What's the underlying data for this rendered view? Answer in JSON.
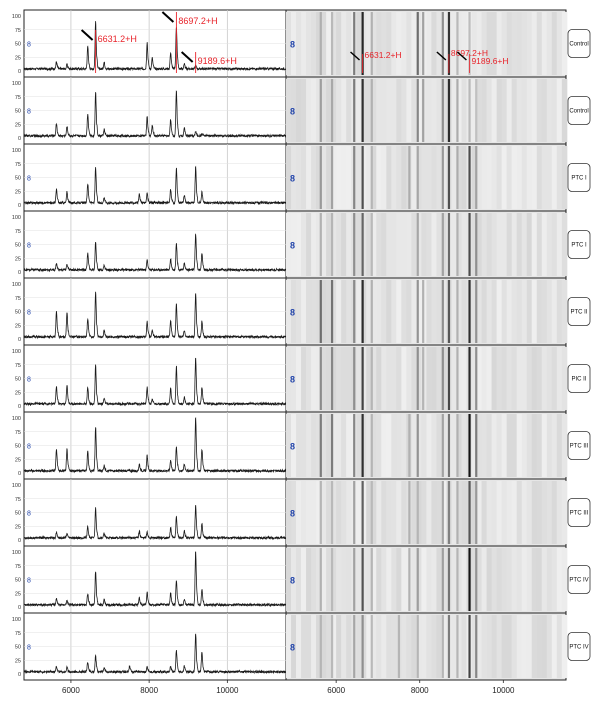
{
  "chart_data": {
    "type": "line",
    "title": "",
    "xlabel": "",
    "ylabel": "",
    "xlim": [
      4800,
      11500
    ],
    "ylim": [
      0,
      100
    ],
    "x_ticks": [
      "6000",
      "8000",
      "10000"
    ],
    "y_ticks": [
      "100",
      "75",
      "50",
      "25",
      "0"
    ],
    "legend_marker": "8",
    "annotations": [
      "6631.2+H",
      "8697.2+H",
      "9189.6+H"
    ],
    "annotation_x": [
      6631.2,
      8697.2,
      9189.6
    ],
    "colors": {
      "spectrum": "#1a1a1a",
      "grid": "#c8c8c8",
      "annotation": "#e8232a",
      "marker": "#2244aa",
      "gel_bg": "#e4e4e4"
    },
    "rows": [
      {
        "label": "Control",
        "peaks": [
          [
            5630,
            13
          ],
          [
            5900,
            8
          ],
          [
            6430,
            40
          ],
          [
            6631.2,
            85
          ],
          [
            6850,
            12
          ],
          [
            7950,
            48
          ],
          [
            8080,
            20
          ],
          [
            8550,
            30
          ],
          [
            8697.2,
            78
          ],
          [
            8900,
            8
          ],
          [
            9189.6,
            6
          ]
        ]
      },
      {
        "label": "Control",
        "peaks": [
          [
            5630,
            22
          ],
          [
            5900,
            17
          ],
          [
            6430,
            40
          ],
          [
            6631.2,
            80
          ],
          [
            6850,
            12
          ],
          [
            7950,
            35
          ],
          [
            8080,
            20
          ],
          [
            8550,
            30
          ],
          [
            8697.2,
            82
          ],
          [
            8900,
            15
          ],
          [
            9189.6,
            8
          ],
          [
            9350,
            4
          ]
        ]
      },
      {
        "label": "PTC I",
        "peaks": [
          [
            5630,
            25
          ],
          [
            5900,
            20
          ],
          [
            6430,
            35
          ],
          [
            6631.2,
            64
          ],
          [
            6850,
            10
          ],
          [
            7750,
            15
          ],
          [
            7950,
            18
          ],
          [
            8550,
            25
          ],
          [
            8697.2,
            63
          ],
          [
            8900,
            15
          ],
          [
            9189.6,
            65
          ],
          [
            9350,
            20
          ]
        ]
      },
      {
        "label": "PTC I",
        "peaks": [
          [
            5630,
            12
          ],
          [
            5900,
            10
          ],
          [
            6430,
            30
          ],
          [
            6631.2,
            52
          ],
          [
            6850,
            8
          ],
          [
            7950,
            18
          ],
          [
            8550,
            20
          ],
          [
            8697.2,
            50
          ],
          [
            8900,
            12
          ],
          [
            9189.6,
            66
          ],
          [
            9350,
            30
          ]
        ]
      },
      {
        "label": "PTC II",
        "peaks": [
          [
            5630,
            48
          ],
          [
            5900,
            45
          ],
          [
            6430,
            32
          ],
          [
            6631.2,
            82
          ],
          [
            6850,
            12
          ],
          [
            7950,
            28
          ],
          [
            8080,
            12
          ],
          [
            8550,
            30
          ],
          [
            8697.2,
            60
          ],
          [
            8900,
            12
          ],
          [
            9189.6,
            80
          ],
          [
            9350,
            28
          ]
        ]
      },
      {
        "label": "PIC II",
        "peaks": [
          [
            5630,
            32
          ],
          [
            5900,
            35
          ],
          [
            6430,
            30
          ],
          [
            6631.2,
            70
          ],
          [
            6850,
            10
          ],
          [
            7950,
            30
          ],
          [
            8080,
            10
          ],
          [
            8550,
            30
          ],
          [
            8697.2,
            68
          ],
          [
            8900,
            12
          ],
          [
            9189.6,
            83
          ],
          [
            9350,
            30
          ]
        ]
      },
      {
        "label": "PTC III",
        "peaks": [
          [
            5630,
            40
          ],
          [
            5900,
            40
          ],
          [
            6430,
            35
          ],
          [
            6631.2,
            80
          ],
          [
            6850,
            10
          ],
          [
            7750,
            12
          ],
          [
            7950,
            28
          ],
          [
            8550,
            20
          ],
          [
            8697.2,
            45
          ],
          [
            8900,
            12
          ],
          [
            9189.6,
            98
          ],
          [
            9350,
            40
          ]
        ]
      },
      {
        "label": "PTC III",
        "peaks": [
          [
            5630,
            10
          ],
          [
            5900,
            8
          ],
          [
            6430,
            20
          ],
          [
            6631.2,
            55
          ],
          [
            6850,
            8
          ],
          [
            7750,
            12
          ],
          [
            7950,
            10
          ],
          [
            8550,
            18
          ],
          [
            8697.2,
            38
          ],
          [
            8900,
            12
          ],
          [
            9189.6,
            60
          ],
          [
            9350,
            25
          ]
        ]
      },
      {
        "label": "PTC IV",
        "peaks": [
          [
            5630,
            12
          ],
          [
            5900,
            8
          ],
          [
            6430,
            20
          ],
          [
            6631.2,
            62
          ],
          [
            6850,
            10
          ],
          [
            7750,
            12
          ],
          [
            7950,
            22
          ],
          [
            8550,
            22
          ],
          [
            8697.2,
            45
          ],
          [
            8900,
            10
          ],
          [
            9189.6,
            98
          ],
          [
            9350,
            28
          ]
        ]
      },
      {
        "label": "PTC IV",
        "peaks": [
          [
            5630,
            10
          ],
          [
            5900,
            8
          ],
          [
            6430,
            18
          ],
          [
            6631.2,
            30
          ],
          [
            6850,
            8
          ],
          [
            7500,
            10
          ],
          [
            7950,
            10
          ],
          [
            8550,
            10
          ],
          [
            8697.2,
            40
          ],
          [
            8900,
            10
          ],
          [
            9189.6,
            70
          ],
          [
            9350,
            35
          ]
        ]
      }
    ]
  }
}
